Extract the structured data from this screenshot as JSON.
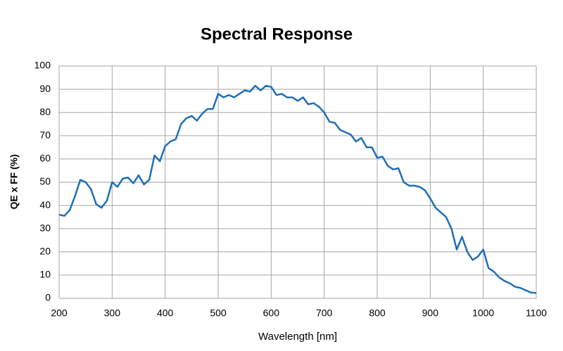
{
  "chart_data": {
    "type": "line",
    "title": "Spectral Response",
    "x_label": "Wavelength [nm]",
    "y_label": "QE x FF (%)",
    "color": "#1f6fb7",
    "grid": true,
    "xlim": [
      200,
      1100
    ],
    "ylim": [
      0,
      100
    ],
    "xticks": [
      200,
      300,
      400,
      500,
      600,
      700,
      800,
      900,
      1000,
      1100
    ],
    "yticks": [
      0,
      10,
      20,
      30,
      40,
      50,
      60,
      70,
      80,
      90,
      100
    ],
    "x": [
      200,
      210,
      220,
      230,
      240,
      250,
      260,
      270,
      280,
      290,
      300,
      310,
      320,
      330,
      340,
      350,
      360,
      370,
      380,
      390,
      400,
      410,
      420,
      430,
      440,
      450,
      460,
      470,
      480,
      490,
      500,
      510,
      520,
      530,
      540,
      550,
      560,
      570,
      580,
      590,
      600,
      610,
      620,
      630,
      640,
      650,
      660,
      670,
      680,
      690,
      700,
      710,
      720,
      730,
      740,
      750,
      760,
      770,
      780,
      790,
      800,
      810,
      820,
      830,
      840,
      850,
      860,
      870,
      880,
      890,
      900,
      910,
      920,
      930,
      940,
      950,
      960,
      970,
      980,
      990,
      1000,
      1010,
      1020,
      1030,
      1040,
      1050,
      1060,
      1070,
      1080,
      1090,
      1100
    ],
    "values": [
      36,
      35.5,
      38,
      44,
      51,
      50,
      47,
      40.5,
      39,
      42,
      50,
      48,
      51.5,
      52,
      49.5,
      53,
      49,
      51,
      61.5,
      59,
      65.5,
      67.5,
      68.5,
      75,
      77.5,
      78.5,
      76.5,
      79.5,
      81.5,
      81.5,
      88,
      86.5,
      87.5,
      86.5,
      88,
      89.5,
      89,
      91.5,
      89.5,
      91.5,
      91,
      87.5,
      88,
      86.5,
      86.5,
      85,
      86.5,
      83.5,
      84,
      82.5,
      80,
      76,
      75.5,
      72.5,
      71.5,
      70.5,
      67.5,
      69,
      65,
      65,
      60.5,
      61,
      57,
      55.5,
      56,
      50,
      48.5,
      48.5,
      48,
      46.5,
      43,
      39,
      37,
      35,
      30,
      21,
      26.5,
      20,
      16.5,
      18,
      21,
      13,
      11.5,
      9,
      7.5,
      6.5,
      5,
      4.5,
      3.5,
      2.5,
      2.3
    ]
  }
}
